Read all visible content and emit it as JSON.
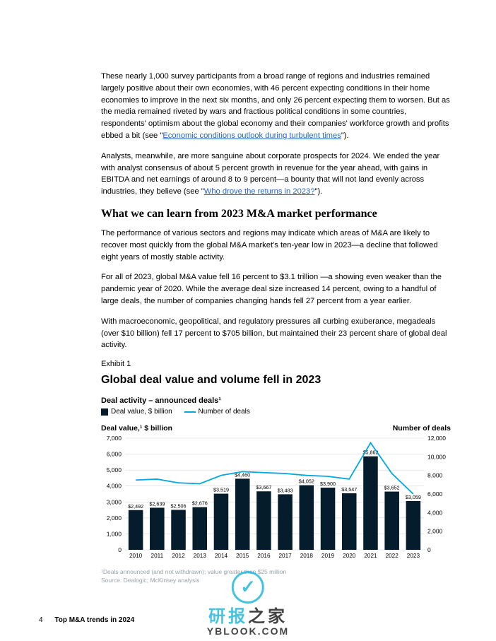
{
  "para1_a": "These nearly 1,000 survey participants from a broad range of regions and industries remained largely positive about their own economies, with 46 percent expecting conditions in their home economies to improve in the next six months, and only 26 percent expecting them to worsen. But as the media remained riveted by wars and fractious political conditions in some countries, respondents' optimism about the global economy and their companies' workforce growth and profits ebbed a bit (see \"",
  "para1_link": "Economic conditions outlook during turbulent times",
  "para1_b": "\").",
  "para2_a": "Analysts, meanwhile, are more sanguine about corporate prospects for 2024. We ended the year with analyst consensus of about 5 percent growth in revenue for the year ahead, with gains in EBITDA and net earnings of around 8 to 9 percent—a bounty that will not land evenly across industries, they believe (see \"",
  "para2_link": "Who drove the returns in 2023?",
  "para2_b": "\").",
  "heading": "What we can learn from 2023 M&A market performance",
  "para3": "The performance of various sectors and regions may indicate which areas of M&A are likely to recover most quickly from the global M&A market's ten-year low in 2023—a decline that followed eight years of mostly stable activity.",
  "para4": "For all of 2023, global M&A value fell 16 percent to $3.1 trillion —a showing even weaker than the pandemic year of 2020. While the average deal size increased 14 percent, owing to a handful of large deals, the number of companies changing hands fell 27 percent from a year earlier.",
  "para5": "With macroeconomic, geopolitical, and regulatory pressures all curbing exuberance, megadeals (over $10 billion) fell 17 percent to $705 billion, but maintained their 23 percent share of global deal activity.",
  "exhibit_label": "Exhibit 1",
  "chart_title": "Global deal value and volume fell in 2023",
  "chart_subtitle": "Deal activity – announced deals¹",
  "legend_bar": "Deal value, $ billion",
  "legend_line": "Number of deals",
  "axis_left_label": "Deal value,¹ $ billion",
  "axis_right_label": "Number of deals",
  "chart": {
    "type": "combo-bar-line",
    "bar_color": "#051c2c",
    "line_color": "#00a8e1",
    "grid_color": "#d6d9dc",
    "text_color": "#000000",
    "background_color": "#ffffff",
    "categories": [
      "2010",
      "2011",
      "2012",
      "2013",
      "2014",
      "2015",
      "2016",
      "2017",
      "2018",
      "2019",
      "2020",
      "2021",
      "2022",
      "2023"
    ],
    "bar_values": [
      2492,
      2639,
      2506,
      2676,
      3519,
      4460,
      3667,
      3483,
      4052,
      3900,
      3547,
      5862,
      3652,
      3059
    ],
    "bar_labels": [
      "$2,492",
      "$2,639",
      "$2,506",
      "$2,676",
      "$3,519",
      "$4,460",
      "$3,667",
      "$3,483",
      "$4,052",
      "$3,900",
      "$3,547",
      "$5,862",
      "$3,652",
      "$3,059"
    ],
    "line_values": [
      7500,
      7600,
      7200,
      7100,
      8000,
      8400,
      8300,
      8200,
      8000,
      7900,
      7600,
      11500,
      8200,
      6000
    ],
    "y1_max": 7000,
    "y1_step": 1000,
    "y2_max": 12000,
    "y2_step": 2000
  },
  "footnote1": "¹Deals announced (and not withdrawn); value greater than $25 million",
  "footnote2": "Source: Dealogic; McKinsey analysis",
  "page_number": "4",
  "doc_title": "Top M&A trends in 2024",
  "wm_cn": "研报之家",
  "wm_url": "YBLOOK.COM"
}
